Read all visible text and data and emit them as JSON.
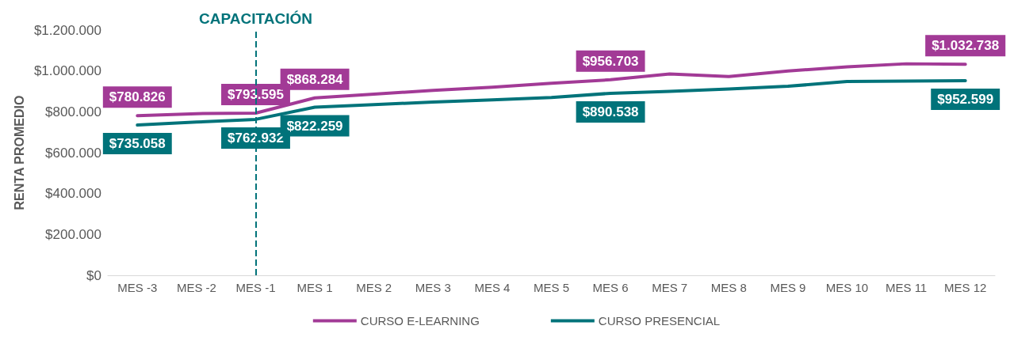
{
  "chart_data": {
    "type": "line",
    "ylabel": "RENTA PROMEDIO",
    "categories": [
      "MES -3",
      "MES -2",
      "MES -1",
      "MES 1",
      "MES 2",
      "MES 3",
      "MES 4",
      "MES 5",
      "MES 6",
      "MES 7",
      "MES 8",
      "MES 9",
      "MES 10",
      "MES 11",
      "MES 12"
    ],
    "series": [
      {
        "name": "CURSO E-LEARNING",
        "color": "#a23a96",
        "values": [
          780826,
          791000,
          793595,
          868284,
          886000,
          905000,
          920000,
          940000,
          956703,
          985000,
          973000,
          1000000,
          1020000,
          1035000,
          1032738
        ],
        "value_labels": [
          "$780.826",
          null,
          "$793.595",
          "$868.284",
          null,
          null,
          null,
          null,
          "$956.703",
          null,
          null,
          null,
          null,
          null,
          "$1.032.738"
        ]
      },
      {
        "name": "CURSO PRESENCIAL",
        "color": "#00737a",
        "values": [
          735058,
          750000,
          762932,
          822259,
          835000,
          848000,
          858000,
          870000,
          890538,
          900000,
          912000,
          925000,
          948000,
          950000,
          952599
        ],
        "value_labels": [
          "$735.058",
          null,
          "$762.932",
          "$822.259",
          null,
          null,
          null,
          null,
          "$890.538",
          null,
          null,
          null,
          null,
          null,
          "$952.599"
        ]
      }
    ],
    "ylim": [
      0,
      1200000
    ],
    "yticks": [
      {
        "value": 0,
        "label": "$0"
      },
      {
        "value": 200000,
        "label": "$200.000"
      },
      {
        "value": 400000,
        "label": "$400.000"
      },
      {
        "value": 600000,
        "label": "$600.000"
      },
      {
        "value": 800000,
        "label": "$800.000"
      },
      {
        "value": 1000000,
        "label": "$1.000.000"
      },
      {
        "value": 1200000,
        "label": "$1.200.000"
      }
    ],
    "ref_lines": [
      {
        "axis": "x",
        "value": "MES -1",
        "label": "CAPACITACIÓN",
        "color": "#00737a",
        "line_style": "dashed"
      }
    ],
    "grid": false,
    "legend": "bottom",
    "marker": "none",
    "line_style": "solid"
  }
}
